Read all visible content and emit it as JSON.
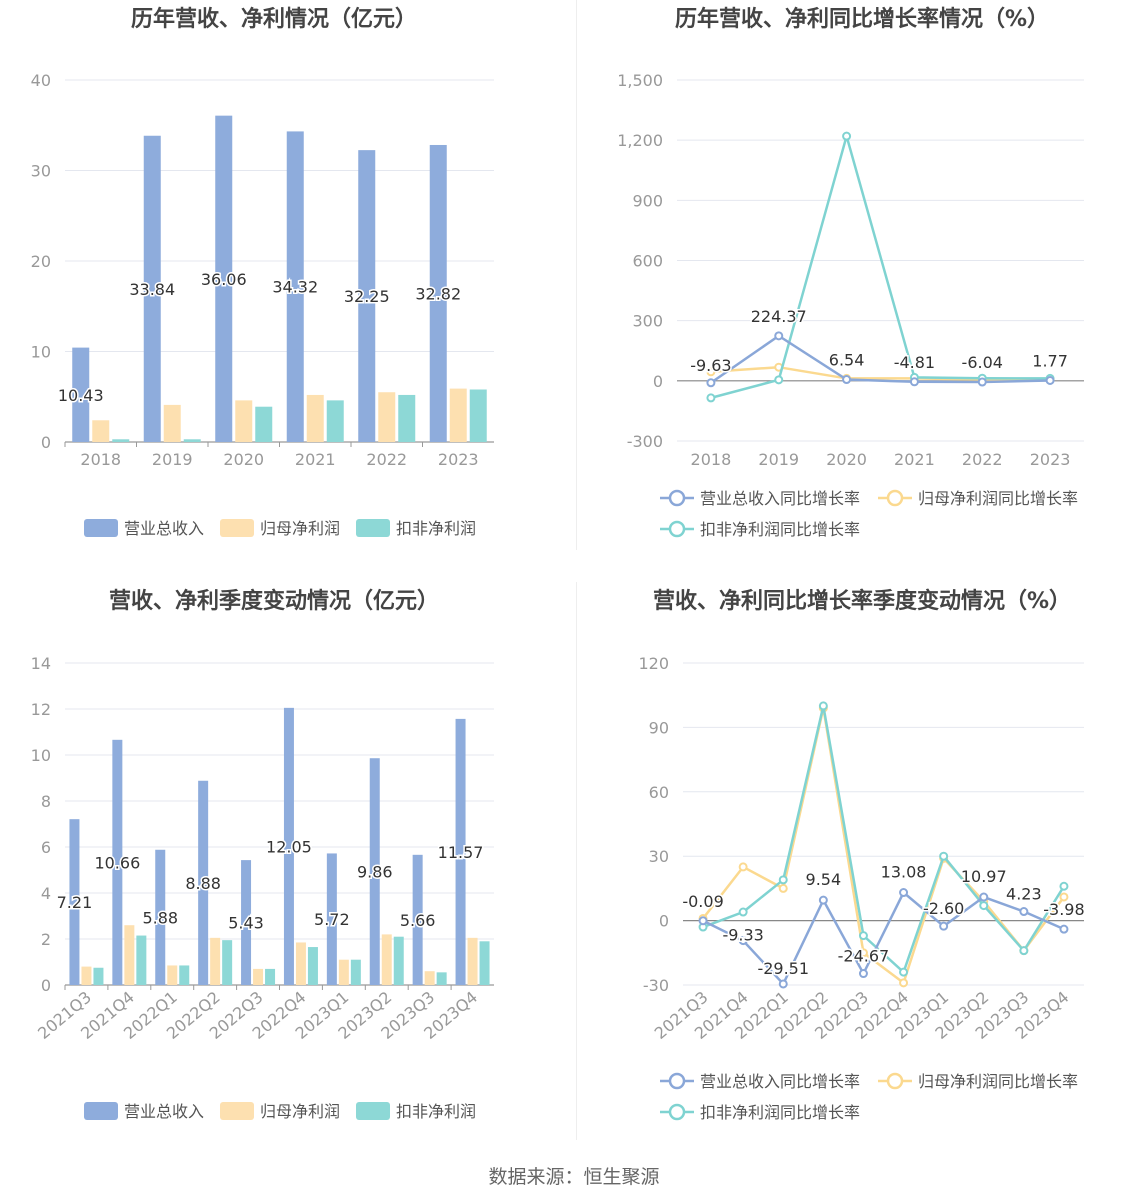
{
  "colors": {
    "revenue": "#8eacdc",
    "parent_profit": "#fde0b0",
    "deducted_profit": "#8dd8d6",
    "revenue_line": "#8aa7d8",
    "parent_line": "#fbd98f",
    "deducted_line": "#7fd3d1",
    "axis_text": "#999999",
    "title_text": "#444444",
    "grid": "#e4e7ef"
  },
  "source": "数据来源：恒生聚源",
  "chart_data": [
    {
      "id": "annual-bar",
      "type": "bar",
      "title": "历年营收、净利情况（亿元）",
      "categories": [
        "2018",
        "2019",
        "2020",
        "2021",
        "2022",
        "2023"
      ],
      "ylim": [
        0,
        40
      ],
      "yticks": [
        0,
        10,
        20,
        30,
        40
      ],
      "series": [
        {
          "name": "营业总收入",
          "values": [
            10.43,
            33.84,
            36.06,
            34.32,
            32.25,
            32.82
          ],
          "labels": [
            "10.43",
            "33.84",
            "36.06",
            "34.32",
            "32.25",
            "32.82"
          ]
        },
        {
          "name": "归母净利润",
          "values": [
            2.4,
            4.1,
            4.6,
            5.2,
            5.5,
            5.9
          ]
        },
        {
          "name": "扣非净利润",
          "values": [
            0.3,
            0.3,
            3.9,
            4.6,
            5.2,
            5.8
          ]
        }
      ],
      "grid": true,
      "legend": "bottom"
    },
    {
      "id": "annual-line",
      "type": "line",
      "title": "历年营收、净利同比增长率情况（%）",
      "categories": [
        "2018",
        "2019",
        "2020",
        "2021",
        "2022",
        "2023"
      ],
      "ylim": [
        -300,
        1500
      ],
      "yticks": [
        -300,
        0,
        300,
        600,
        900,
        1200,
        1500
      ],
      "ytick_labels": [
        "-300",
        "0",
        "300",
        "600",
        "900",
        "1,200",
        "1,500"
      ],
      "series": [
        {
          "name": "营业总收入同比增长率",
          "values": [
            -9.63,
            224.37,
            6.54,
            -4.81,
            -6.04,
            1.77
          ],
          "labels": [
            "-9.63",
            "224.37",
            "6.54",
            "-4.81",
            "-6.04",
            "1.77"
          ]
        },
        {
          "name": "归母净利润同比增长率",
          "values": [
            45,
            68,
            12,
            12,
            6,
            8
          ]
        },
        {
          "name": "扣非净利润同比增长率",
          "values": [
            -85,
            5,
            1220,
            17,
            13,
            12
          ]
        }
      ],
      "grid": true,
      "legend": "bottom"
    },
    {
      "id": "quarter-bar",
      "type": "bar",
      "title": "营收、净利季度变动情况（亿元）",
      "categories": [
        "2021Q3",
        "2021Q4",
        "2022Q1",
        "2022Q2",
        "2022Q3",
        "2022Q4",
        "2023Q1",
        "2023Q2",
        "2023Q3",
        "2023Q4"
      ],
      "ylim": [
        0,
        14
      ],
      "yticks": [
        0,
        2,
        4,
        6,
        8,
        10,
        12,
        14
      ],
      "series": [
        {
          "name": "营业总收入",
          "values": [
            7.21,
            10.66,
            5.88,
            8.88,
            5.43,
            12.05,
            5.72,
            9.86,
            5.66,
            11.57
          ],
          "labels": [
            "7.21",
            "10.66",
            "5.88",
            "8.88",
            "5.43",
            "12.05",
            "5.72",
            "9.86",
            "5.66",
            "11.57"
          ]
        },
        {
          "name": "归母净利润",
          "values": [
            0.8,
            2.6,
            0.85,
            2.05,
            0.7,
            1.85,
            1.1,
            2.2,
            0.6,
            2.05
          ]
        },
        {
          "name": "扣非净利润",
          "values": [
            0.75,
            2.15,
            0.85,
            1.95,
            0.7,
            1.65,
            1.1,
            2.1,
            0.55,
            1.9
          ]
        }
      ],
      "grid": true,
      "legend": "bottom"
    },
    {
      "id": "quarter-line",
      "type": "line",
      "title": "营收、净利同比增长率季度变动情况（%）",
      "categories": [
        "2021Q3",
        "2021Q4",
        "2022Q1",
        "2022Q2",
        "2022Q3",
        "2022Q4",
        "2023Q1",
        "2023Q2",
        "2023Q3",
        "2023Q4"
      ],
      "ylim": [
        -30,
        120
      ],
      "yticks": [
        -30,
        0,
        30,
        60,
        90,
        120
      ],
      "series": [
        {
          "name": "营业总收入同比增长率",
          "values": [
            -0.09,
            -9.33,
            -29.51,
            9.54,
            -24.67,
            13.08,
            -2.6,
            10.97,
            4.23,
            -3.98
          ],
          "labels": [
            "-0.09",
            "-9.33",
            "-29.51",
            "9.54",
            "-24.67",
            "13.08",
            "-2.60",
            "10.97",
            "4.23",
            "-3.98"
          ]
        },
        {
          "name": "归母净利润同比增长率",
          "values": [
            1,
            25,
            15,
            99,
            -15,
            -29,
            29,
            9,
            -14,
            11
          ]
        },
        {
          "name": "扣非净利润同比增长率",
          "values": [
            -3,
            4,
            19,
            100,
            -7,
            -24,
            30,
            7,
            -14,
            16
          ]
        }
      ],
      "grid": true,
      "legend": "bottom"
    }
  ]
}
